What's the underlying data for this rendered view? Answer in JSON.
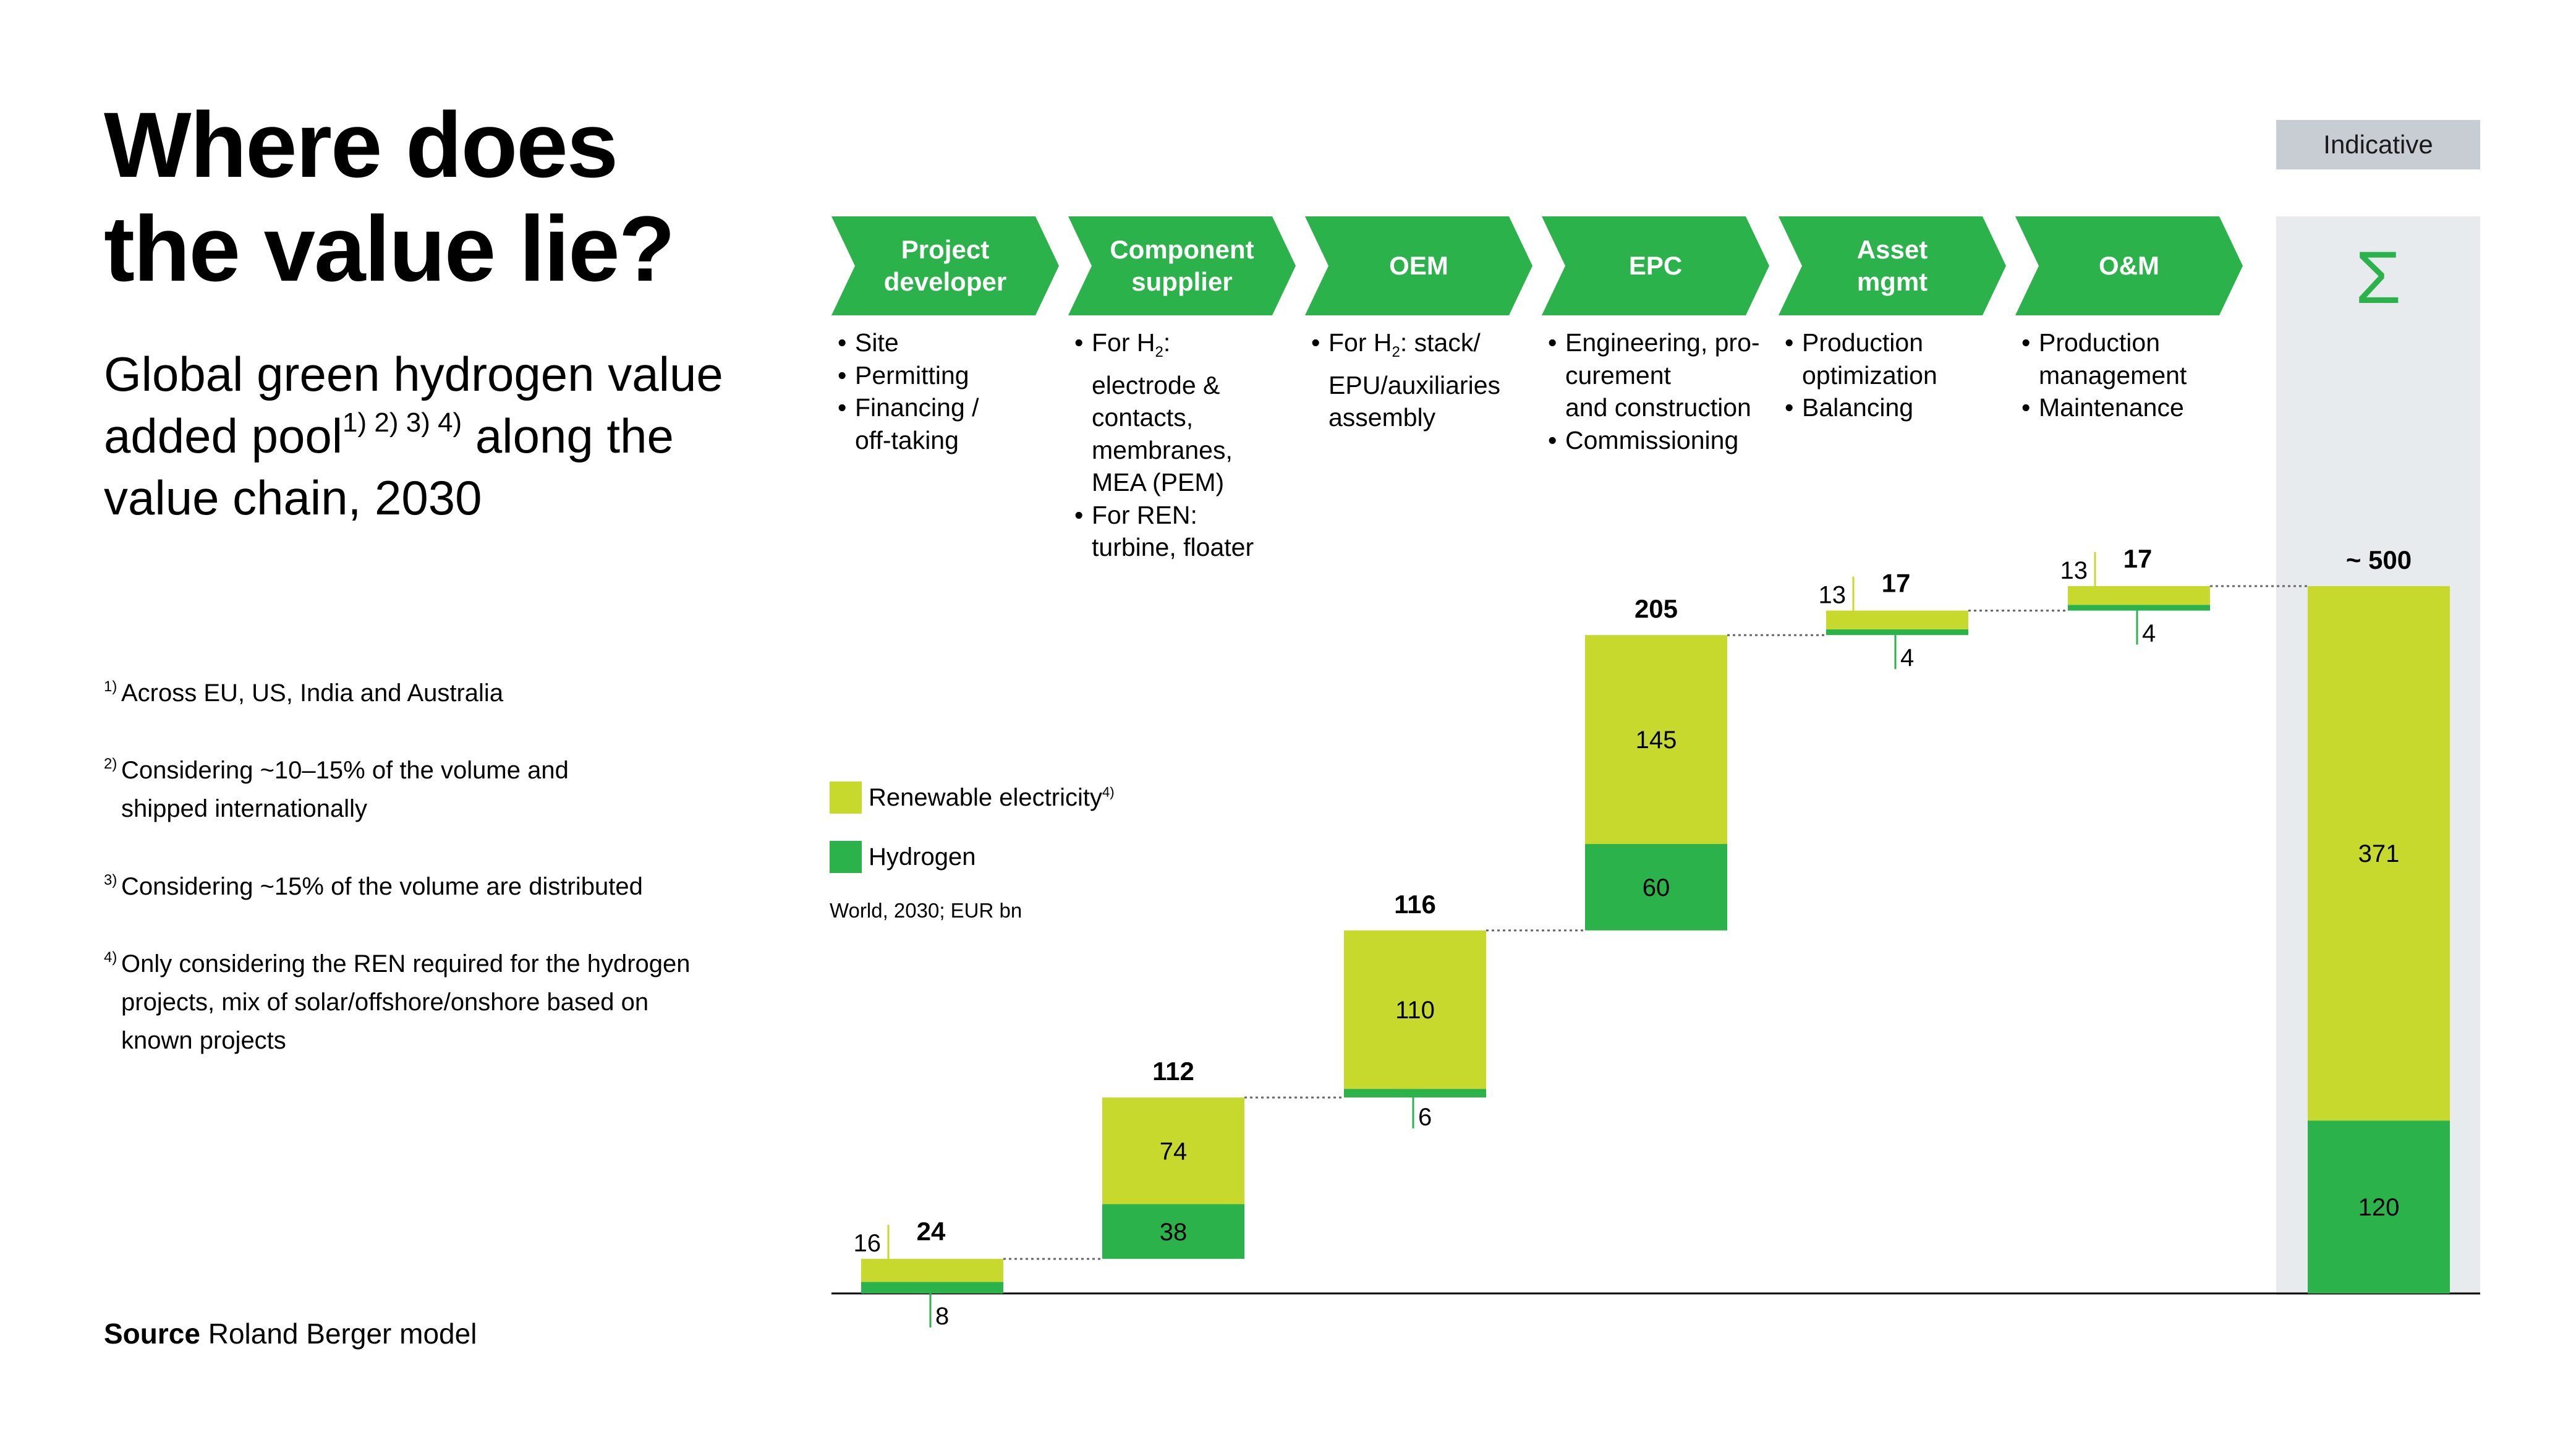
{
  "title_line1": "Where does",
  "title_line2": "the value lie?",
  "subtitle": {
    "part1": "Global green hydrogen value added pool",
    "sup": "1) 2) 3) 4)",
    "part2": " along the value chain, 2030"
  },
  "footnotes": [
    {
      "ref": "1)",
      "lines": [
        "Across EU, US, India and Australia"
      ]
    },
    {
      "ref": "2)",
      "lines": [
        "Considering ~10–15% of the volume and",
        "shipped internationally"
      ]
    },
    {
      "ref": "3)",
      "lines": [
        "Considering ~15% of the volume are distributed"
      ]
    },
    {
      "ref": "4)",
      "lines": [
        "Only considering the REN required for the hydrogen",
        "projects, mix of solar/offshore/onshore based on",
        "known projects"
      ]
    }
  ],
  "source": {
    "label": "Source",
    "text": " Roland Berger model"
  },
  "indicative": "Indicative",
  "sigma": "Σ",
  "stages": [
    {
      "label_lines": [
        "Project",
        "developer"
      ],
      "bullets": [
        [
          "Site"
        ],
        [
          "Permitting"
        ],
        [
          "Financing /",
          "off-taking"
        ]
      ]
    },
    {
      "label_lines": [
        "Component",
        "supplier"
      ],
      "bullets": [
        [
          "For H",
          "2",
          ":",
          "electrode &",
          "contacts,",
          "membranes,",
          "MEA (PEM)"
        ],
        [
          "For REN:",
          "turbine, floater"
        ]
      ]
    },
    {
      "label_lines": [
        "OEM"
      ],
      "bullets": [
        [
          "For H",
          "2",
          ": stack/",
          "EPU/auxiliaries",
          "assembly"
        ]
      ]
    },
    {
      "label_lines": [
        "EPC"
      ],
      "bullets": [
        [
          "Engineering, pro-",
          "curement",
          "and construction"
        ],
        [
          "Commissioning"
        ]
      ]
    },
    {
      "label_lines": [
        "Asset",
        "mgmt"
      ],
      "bullets": [
        [
          "Production",
          "optimization"
        ],
        [
          "Balancing"
        ]
      ]
    },
    {
      "label_lines": [
        "O&M"
      ],
      "bullets": [
        [
          "Production",
          "management"
        ],
        [
          "Maintenance"
        ]
      ]
    }
  ],
  "legend": {
    "renewable": "Renewable electricity",
    "renewable_sup": "4)",
    "hydrogen": "Hydrogen",
    "unit": "World, 2030; EUR bn"
  },
  "colors": {
    "green": "#2cb24b",
    "lime": "#c8d92e",
    "sigma_bg": "#e8ebee",
    "indicative_bg": "#c8cdd3"
  },
  "chart_data": {
    "type": "waterfall",
    "unit": "EUR bn",
    "categories": [
      "Project developer",
      "Component supplier",
      "OEM",
      "EPC",
      "Asset mgmt",
      "O&M",
      "Σ"
    ],
    "series": [
      {
        "name": "Hydrogen",
        "values": [
          8,
          38,
          6,
          60,
          4,
          4,
          120
        ]
      },
      {
        "name": "Renewable electricity",
        "values": [
          16,
          74,
          110,
          145,
          13,
          13,
          371
        ]
      }
    ],
    "totals": [
      "24",
      "112",
      "116",
      "205",
      "17",
      "17",
      "~ 500"
    ],
    "segment_labels": [
      {
        "hydrogen": "8",
        "renewable": "16"
      },
      {
        "hydrogen": "38",
        "renewable": "74"
      },
      {
        "hydrogen": "6",
        "renewable": "110"
      },
      {
        "hydrogen": "60",
        "renewable": "145"
      },
      {
        "hydrogen": "4",
        "renewable": "13"
      },
      {
        "hydrogen": "4",
        "renewable": "13"
      },
      {
        "hydrogen": "120",
        "renewable": "371"
      }
    ],
    "label_placement": [
      "outside",
      "inside",
      "outside-hydrogen",
      "inside",
      "outside",
      "outside",
      "inside"
    ],
    "ylim": [
      0,
      500
    ]
  }
}
